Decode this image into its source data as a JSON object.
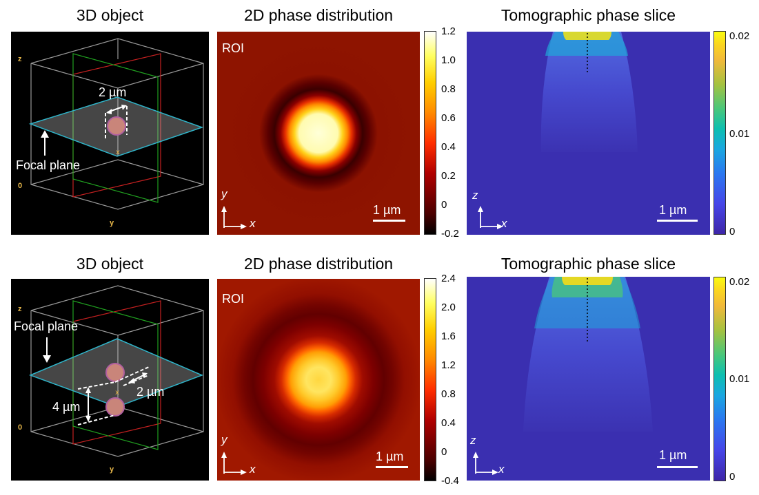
{
  "rows": [
    {
      "titles": {
        "obj": "3D object",
        "phase": "2D phase distribution",
        "tomo": "Tomographic phase slice"
      },
      "obj": {
        "focal_label": "Focal plane",
        "dim_label": "2 µm",
        "axis_z": "z",
        "axis_y": "y",
        "axis_zero": "0",
        "axis_x": "x"
      },
      "phase": {
        "roi": "ROI",
        "scale": "1 µm",
        "axis_y": "y",
        "axis_x": "x",
        "colorbar_ticks": [
          "1.2",
          "1.0",
          "0.8",
          "0.6",
          "0.4",
          "0.2",
          "0",
          "-0.2"
        ]
      },
      "tomo": {
        "scale": "1 µm",
        "axis_z": "z",
        "axis_x": "x",
        "colorbar_ticks": [
          "0.02",
          "0.01",
          "0"
        ]
      }
    },
    {
      "titles": {
        "obj": "3D object",
        "phase": "2D phase distribution",
        "tomo": "Tomographic phase slice"
      },
      "obj": {
        "focal_label": "Focal plane",
        "dim_label": "2 µm",
        "dim_label2": "4 µm",
        "axis_z": "z",
        "axis_y": "y",
        "axis_zero": "0",
        "axis_x": "x"
      },
      "phase": {
        "roi": "ROI",
        "scale": "1 µm",
        "axis_y": "y",
        "axis_x": "x",
        "colorbar_ticks": [
          "2.4",
          "2.0",
          "1.6",
          "1.2",
          "0.8",
          "0.4",
          "0",
          "-0.4"
        ]
      },
      "tomo": {
        "scale": "1 µm",
        "axis_z": "z",
        "axis_x": "x",
        "colorbar_ticks": [
          "0.02",
          "0.01",
          "0"
        ]
      }
    }
  ]
}
